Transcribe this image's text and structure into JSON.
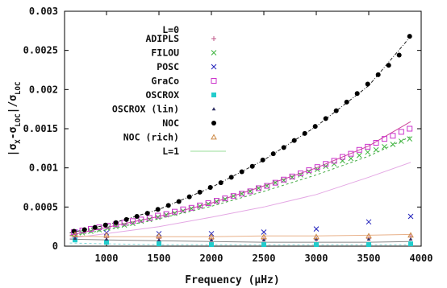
{
  "chart_data": {
    "type": "scatter",
    "xlabel": "Frequency (μHz)",
    "ylabel_parts": [
      "|σ",
      "X",
      "-σ",
      "LOC",
      "|/σ",
      "LOC"
    ],
    "xlim": [
      600,
      4000
    ],
    "ylim": [
      0,
      0.003
    ],
    "x_ticks": [
      1000,
      1500,
      2000,
      2500,
      3000,
      3500,
      4000
    ],
    "x_tick_labels": [
      "1000",
      "1500",
      "2000",
      "2500",
      "3000",
      "3500",
      "4000"
    ],
    "y_ticks": [
      0,
      0.0005,
      0.001,
      0.0015,
      0.002,
      0.0025,
      0.003
    ],
    "y_tick_labels": [
      "0",
      "0.0005",
      "0.001",
      "0.0015",
      "0.002",
      "0.0025",
      "0.003"
    ],
    "legend_title_0": "L=0",
    "legend_title_1": "L=1",
    "legend_position": "top-left",
    "grid": false,
    "series": [
      {
        "name": "ADIPLS",
        "marker": "plus",
        "color": "#c0588a",
        "x": [
          700,
          1000,
          1500,
          2000,
          2500,
          3000,
          3500,
          3900
        ],
        "y": [
          0.00012,
          0.00011,
          0.0001,
          9e-05,
          9e-05,
          9e-05,
          0.0001,
          0.00012
        ]
      },
      {
        "name": "FILOU",
        "marker": "cross",
        "color": "#3fb43f",
        "x": [
          690,
          770,
          850,
          930,
          1010,
          1090,
          1170,
          1250,
          1330,
          1410,
          1490,
          1570,
          1650,
          1730,
          1810,
          1890,
          1970,
          2050,
          2130,
          2210,
          2290,
          2370,
          2450,
          2530,
          2610,
          2690,
          2770,
          2850,
          2930,
          3010,
          3090,
          3170,
          3250,
          3330,
          3410,
          3490,
          3570,
          3650,
          3730,
          3810,
          3890
        ],
        "y": [
          0.00016,
          0.00017,
          0.00019,
          0.00021,
          0.00023,
          0.00025,
          0.00027,
          0.00029,
          0.00032,
          0.00034,
          0.00037,
          0.0004,
          0.00042,
          0.00045,
          0.00048,
          0.00051,
          0.00054,
          0.00057,
          0.0006,
          0.00064,
          0.00067,
          0.0007,
          0.00074,
          0.00077,
          0.00081,
          0.00084,
          0.00088,
          0.00091,
          0.00095,
          0.00098,
          0.00102,
          0.00105,
          0.00109,
          0.00112,
          0.00116,
          0.0012,
          0.00123,
          0.00127,
          0.0013,
          0.00134,
          0.00137
        ]
      },
      {
        "name": "POSC",
        "marker": "x",
        "color": "#2222bb",
        "x": [
          700,
          1000,
          1500,
          2000,
          2500,
          3000,
          3500,
          3900
        ],
        "y": [
          0.00018,
          0.00017,
          0.00016,
          0.00016,
          0.00018,
          0.00022,
          0.00031,
          0.00038
        ]
      },
      {
        "name": "GraCo",
        "marker": "square",
        "color": "#cc33cc",
        "x": [
          690,
          770,
          850,
          930,
          1010,
          1090,
          1170,
          1250,
          1330,
          1410,
          1490,
          1570,
          1650,
          1730,
          1810,
          1890,
          1970,
          2050,
          2130,
          2210,
          2290,
          2370,
          2450,
          2530,
          2610,
          2690,
          2770,
          2850,
          2930,
          3010,
          3090,
          3170,
          3250,
          3330,
          3410,
          3490,
          3570,
          3650,
          3730,
          3810,
          3890
        ],
        "y": [
          0.00018,
          0.0002,
          0.00022,
          0.00024,
          0.00026,
          0.00028,
          0.0003,
          0.00032,
          0.00034,
          0.00036,
          0.00039,
          0.00041,
          0.00044,
          0.00047,
          0.00049,
          0.00052,
          0.00055,
          0.00058,
          0.00061,
          0.00064,
          0.00067,
          0.0007,
          0.00074,
          0.00077,
          0.00081,
          0.00085,
          0.00089,
          0.00093,
          0.00097,
          0.00101,
          0.00105,
          0.00109,
          0.00114,
          0.00118,
          0.00123,
          0.00127,
          0.00132,
          0.00137,
          0.00141,
          0.00146,
          0.0015
        ]
      },
      {
        "name": "OSCROX",
        "marker": "filled-square",
        "color": "#22cccc",
        "x": [
          700,
          1000,
          1500,
          2000,
          2500,
          3000,
          3500,
          3900
        ],
        "y": [
          8e-05,
          5e-05,
          3e-05,
          2e-05,
          2e-05,
          2e-05,
          2e-05,
          3e-05
        ]
      },
      {
        "name": "OSCROX (lin)",
        "marker": "filled-triangle",
        "color": "#333366",
        "x": [
          700,
          1000,
          1500,
          2000,
          2500,
          3000,
          3500,
          3900
        ],
        "y": [
          0.0001,
          9e-05,
          8e-05,
          8e-05,
          8e-05,
          9e-05,
          9e-05,
          9e-05
        ]
      },
      {
        "name": "NOC",
        "marker": "filled-circle",
        "color": "#000000",
        "x": [
          690,
          790,
          890,
          990,
          1090,
          1190,
          1290,
          1390,
          1490,
          1590,
          1690,
          1790,
          1890,
          1990,
          2090,
          2190,
          2290,
          2390,
          2490,
          2590,
          2690,
          2790,
          2890,
          2990,
          3090,
          3190,
          3290,
          3390,
          3490,
          3590,
          3690,
          3790,
          3890
        ],
        "y": [
          0.00019,
          0.00021,
          0.00024,
          0.00027,
          0.0003,
          0.00034,
          0.00038,
          0.00042,
          0.00047,
          0.00052,
          0.00057,
          0.00063,
          0.00069,
          0.00075,
          0.00081,
          0.00088,
          0.00095,
          0.00102,
          0.0011,
          0.00118,
          0.00126,
          0.00135,
          0.00144,
          0.00153,
          0.00163,
          0.00173,
          0.00184,
          0.00195,
          0.00207,
          0.00219,
          0.00231,
          0.00244,
          0.00268
        ]
      },
      {
        "name": "NOC (rich)",
        "marker": "triangle",
        "color": "#cc8844",
        "x": [
          700,
          1000,
          1500,
          2000,
          2500,
          3000,
          3500,
          3900
        ],
        "y": [
          0.00015,
          0.00014,
          0.00013,
          0.00012,
          0.00012,
          0.00012,
          0.00013,
          0.00014
        ]
      }
    ],
    "lines": [
      {
        "name": "NOC L=1",
        "style": "dashdot",
        "color": "#222222",
        "x": [
          650,
          1000,
          1500,
          2000,
          2500,
          3000,
          3500,
          3900
        ],
        "y": [
          0.00017,
          0.00027,
          0.00047,
          0.00075,
          0.0011,
          0.00153,
          0.00205,
          0.00268
        ]
      },
      {
        "name": "GraCo L=1",
        "style": "solid",
        "color": "#cc4499",
        "x": [
          650,
          1000,
          1500,
          2000,
          2500,
          3000,
          3500,
          3900
        ],
        "y": [
          0.00014,
          0.00024,
          0.00038,
          0.00055,
          0.00077,
          0.001,
          0.00128,
          0.00159
        ]
      },
      {
        "name": "FILOU L=1",
        "style": "dashed",
        "color": "#44aa44",
        "x": [
          650,
          1000,
          1500,
          2000,
          2500,
          3000,
          3500,
          3900
        ],
        "y": [
          0.00013,
          0.00021,
          0.00035,
          0.00051,
          0.0007,
          0.00091,
          0.00115,
          0.0014
        ]
      },
      {
        "name": "POSC L=1",
        "style": "solid",
        "color": "#e4a8e4",
        "x": [
          650,
          1000,
          1500,
          2000,
          2500,
          3000,
          3500,
          3900
        ],
        "y": [
          0.0001,
          0.00016,
          0.00025,
          0.00037,
          0.0005,
          0.00066,
          0.00088,
          0.00107
        ]
      },
      {
        "name": "NOC (rich) L=1",
        "style": "solid",
        "color": "#e8b088",
        "x": [
          650,
          1000,
          1500,
          2000,
          2500,
          3000,
          3500,
          3900
        ],
        "y": [
          0.00013,
          0.00012,
          0.00012,
          0.00012,
          0.00013,
          0.00013,
          0.00014,
          0.00015
        ]
      },
      {
        "name": "ADIPLS L=1",
        "style": "solid",
        "color": "#888888",
        "x": [
          650,
          1000,
          1500,
          2000,
          2500,
          3000,
          3500,
          3900
        ],
        "y": [
          9e-05,
          8e-05,
          7e-05,
          6e-05,
          5e-05,
          5e-05,
          5e-05,
          6e-05
        ]
      },
      {
        "name": "OSCROX L=1",
        "style": "dashed",
        "color": "#7fd8d8",
        "x": [
          650,
          1000,
          1500,
          2000,
          2500,
          3000,
          3500,
          3900
        ],
        "y": [
          4e-05,
          3e-05,
          2e-05,
          2e-05,
          2e-05,
          2e-05,
          2e-05,
          2e-05
        ]
      }
    ],
    "legend_line_color": "#99dd99"
  }
}
